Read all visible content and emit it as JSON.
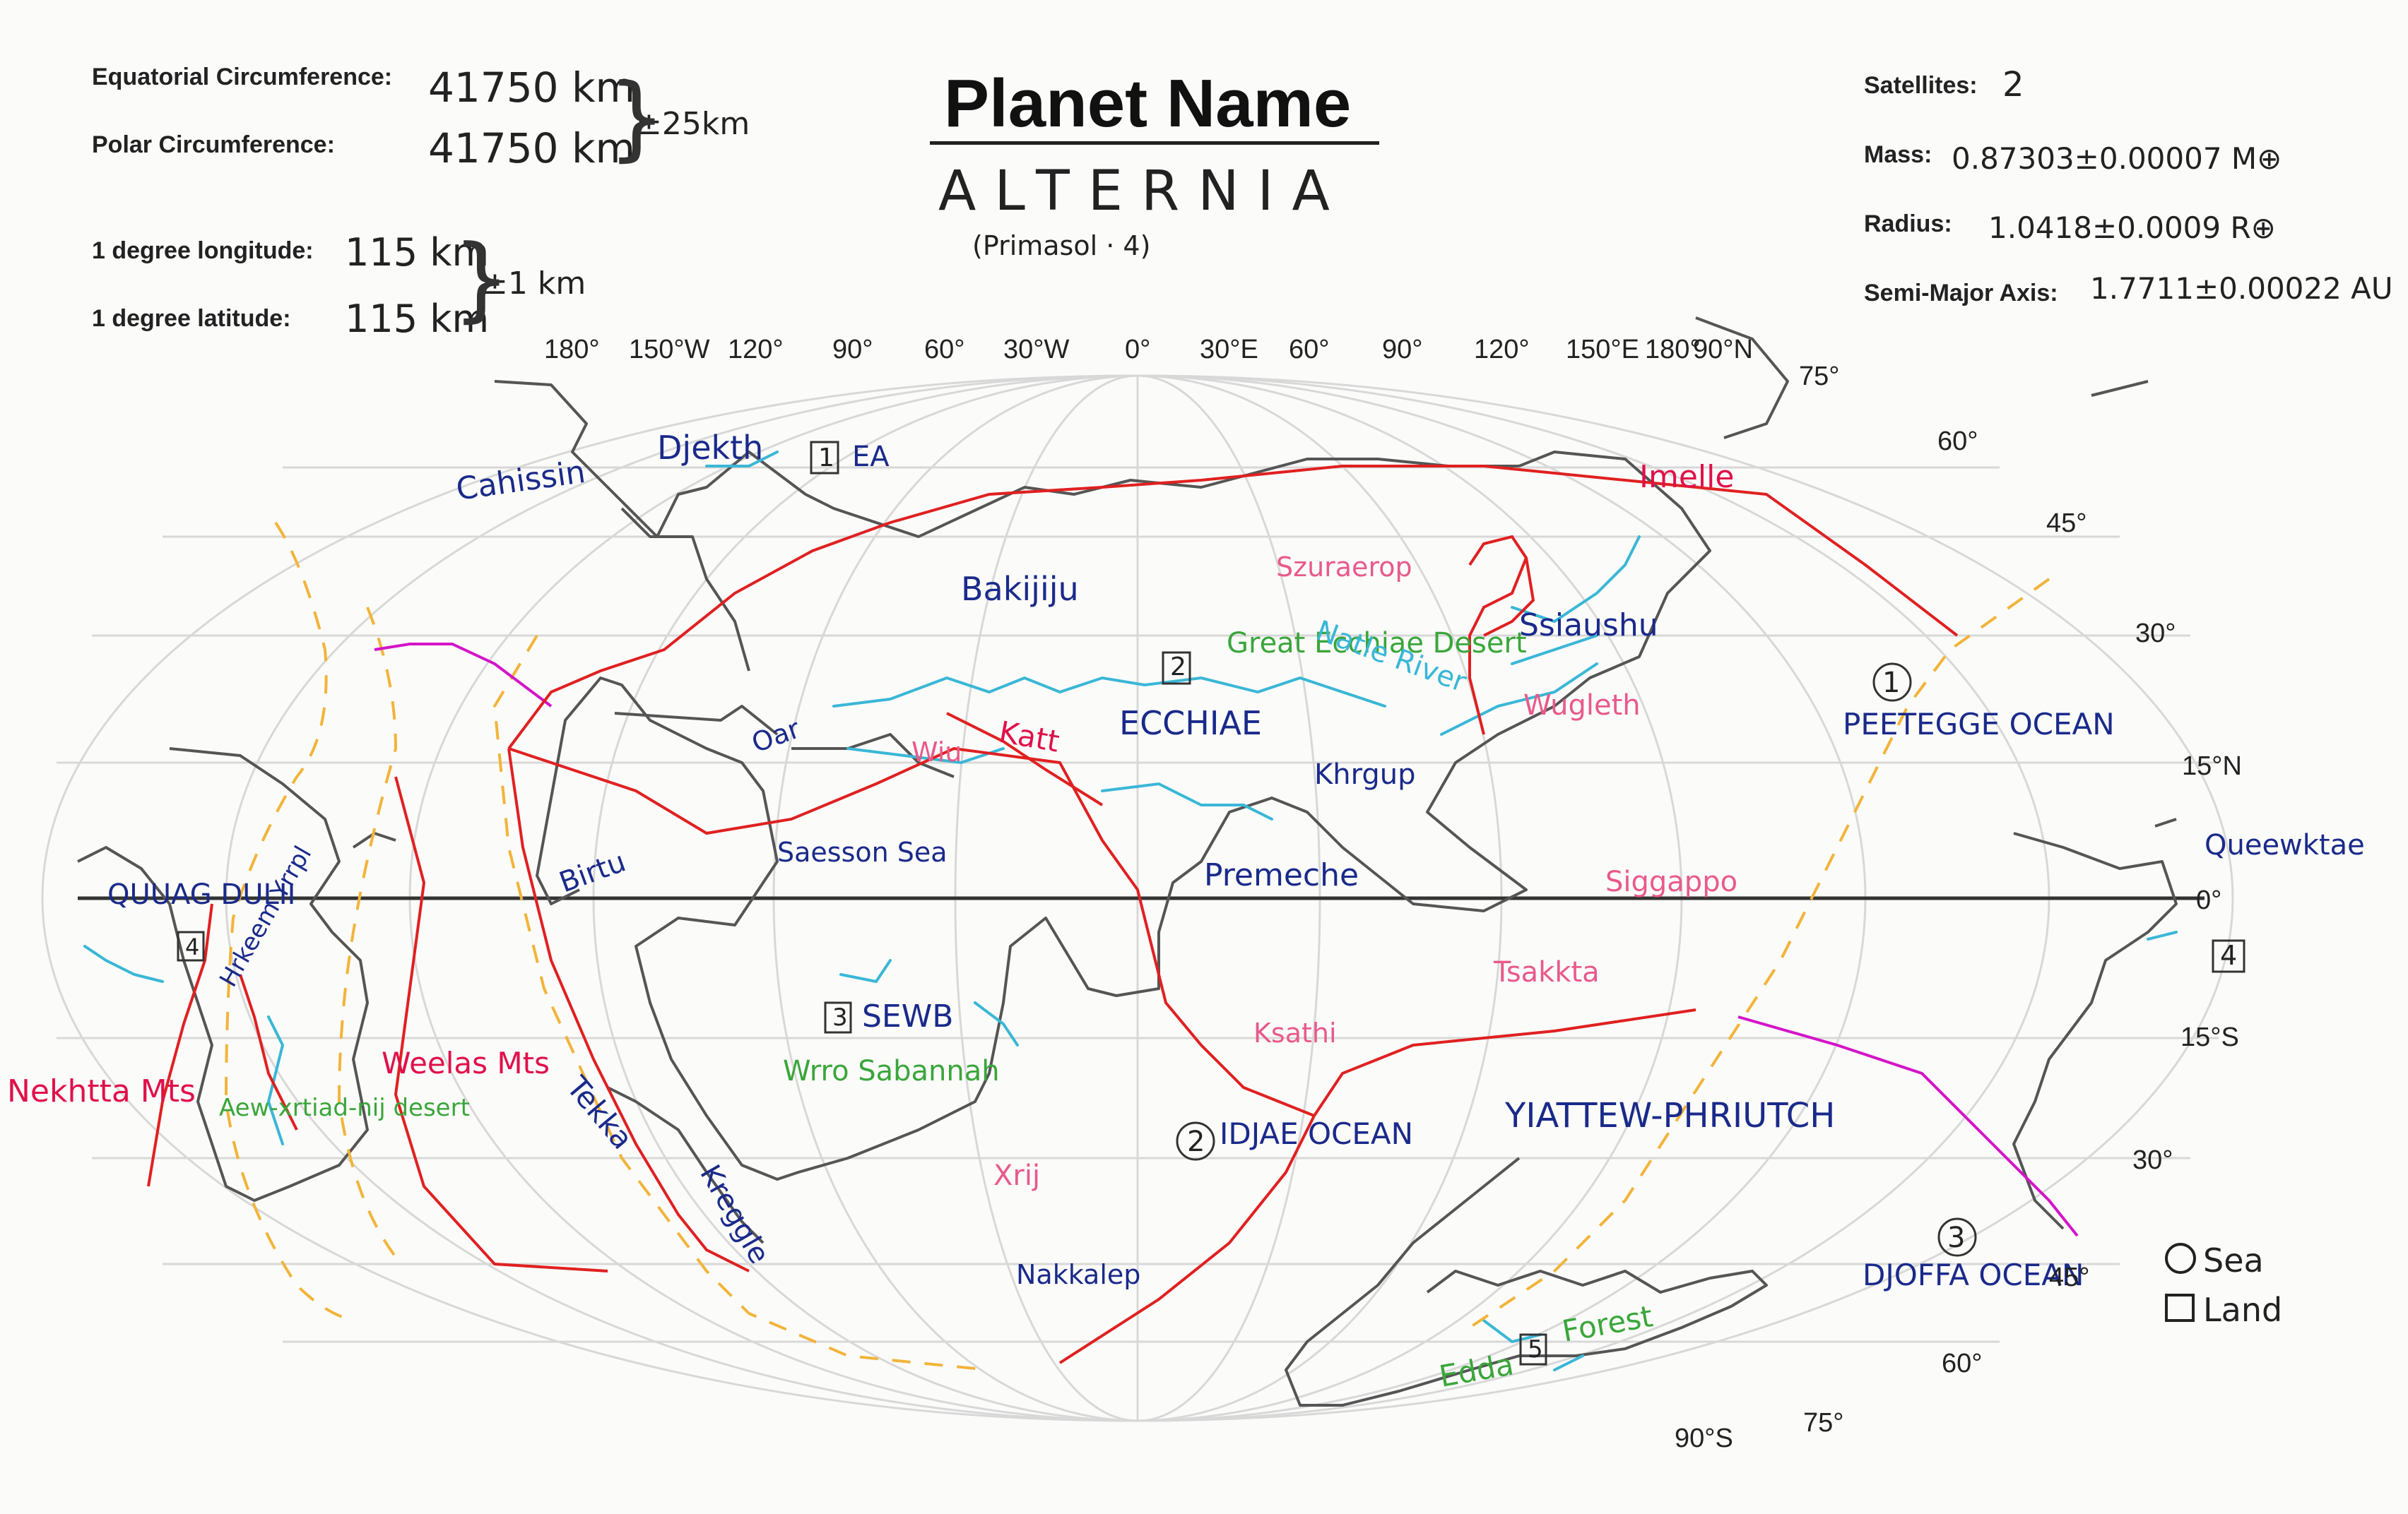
{
  "header": {
    "equatorial_label": "Equatorial Circumference:",
    "equatorial_value": "41750 km",
    "polar_label": "Polar Circumference:",
    "polar_value": "41750 km",
    "circ_tolerance": "±25km",
    "deg_lon_label": "1 degree longitude:",
    "deg_lon_value": "115 km",
    "deg_lat_label": "1 degree latitude:",
    "deg_lat_value": "115 km",
    "deg_tolerance": "±1 km",
    "title": "Planet Name",
    "planet_name": "ALTERNIA",
    "planet_sub": "(Primasol · 4)",
    "satellites_label": "Satellites:",
    "satellites_value": "2",
    "mass_label": "Mass:",
    "mass_value": "0.87303±0.00007 M⊕",
    "radius_label": "Radius:",
    "radius_value": "1.0418±0.0009 R⊕",
    "sma_label": "Semi-Major Axis:",
    "sma_value": "1.7711±0.00022 AU"
  },
  "axes": {
    "longitude_ticks": [
      "180°",
      "150°W",
      "120°",
      "90°",
      "60°",
      "30°W",
      "0°",
      "30°E",
      "60°",
      "90°",
      "120°",
      "150°E",
      "180°",
      "90°N"
    ],
    "latitude_ticks_right": [
      "75°",
      "60°",
      "45°",
      "30°",
      "15°N",
      "0°",
      "15°S",
      "30°",
      "45°",
      "60°",
      "75°",
      "90°S"
    ]
  },
  "legend": {
    "sea_label": "Sea",
    "land_label": "Land"
  },
  "colors": {
    "coast": "#555555",
    "river": "#3ab7d6",
    "ridge": "#e02020",
    "current_warm": "#d414c8",
    "current_cold": "#f2b43a",
    "name_blue": "#1a2a8a",
    "name_pink": "#e85a8a",
    "name_green": "#3aa63a",
    "name_red": "#e0104a"
  },
  "labels": {
    "cahissin": "Cahissin",
    "djekth": "Djekth",
    "ea": "EA",
    "ea_num": "1",
    "imelle": "Imelle",
    "szraerp": "Szuraerop",
    "bakijiju": "Bakijiju",
    "ssiaushu": "Ssiaushu",
    "great_ecchiae_desert": "Great Ecchiae Desert",
    "natle_river": "Natle River",
    "ecchiae": "ECCHIAE",
    "ecchiae_num": "2",
    "wugleth": "Wugleth",
    "oar": "Oar",
    "katt": "Katt",
    "wiu": "Wiu",
    "khrgup": "Khrgup",
    "peetegge_num": "1",
    "peetegge": "PEETEGGE OCEAN",
    "queewktae": "Queewktae",
    "quuag_dulii": "QUUAG DULII",
    "quuag_num": "4",
    "birtu": "Birtu",
    "saesson_sea": "Saesson Sea",
    "premeche": "Premeche",
    "siggappo": "Siggappo",
    "tsakkta": "Tsakkta",
    "right_num4": "4",
    "sewb_num": "3",
    "sewb": "SEWB",
    "wrro_savannah": "Wrro Sabannah",
    "ksathi": "Ksathi",
    "hrkeem_yrrpl": "Hrkeem Yrrpl",
    "nekhtta_mts": "Nekhtta Mts",
    "weelas_mts": "Weelas Mts",
    "aew_desert": "Aew-xrtiad-nij desert",
    "tekka": "Tekka",
    "kreggle": "Kreggle",
    "xrij": "Xrij",
    "idjae_num": "2",
    "idjae": "IDJAE OCEAN",
    "yiattew": "YIATTEW-PHRIUTCH",
    "djoffa_num": "3",
    "djoffa": "DJOFFA OCEAN",
    "nakkalep": "Nakkalep",
    "edda": "Edda",
    "edda_num": "5",
    "forest": "Forest"
  }
}
